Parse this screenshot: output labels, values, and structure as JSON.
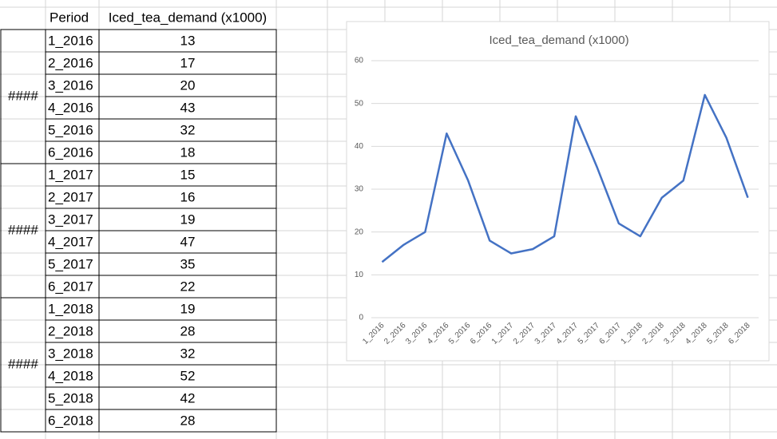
{
  "table": {
    "header": [
      "Period",
      "Iced_tea_demand (x1000)"
    ],
    "groups": [
      {
        "label": "####",
        "rows": [
          [
            "1_2016",
            13
          ],
          [
            "2_2016",
            17
          ],
          [
            "3_2016",
            20
          ],
          [
            "4_2016",
            43
          ],
          [
            "5_2016",
            32
          ],
          [
            "6_2016",
            18
          ]
        ]
      },
      {
        "label": "####",
        "rows": [
          [
            "1_2017",
            15
          ],
          [
            "2_2017",
            16
          ],
          [
            "3_2017",
            19
          ],
          [
            "4_2017",
            47
          ],
          [
            "5_2017",
            35
          ],
          [
            "6_2017",
            22
          ]
        ]
      },
      {
        "label": "####",
        "rows": [
          [
            "1_2018",
            19
          ],
          [
            "2_2018",
            28
          ],
          [
            "3_2018",
            32
          ],
          [
            "4_2018",
            52
          ],
          [
            "5_2018",
            42
          ],
          [
            "6_2018",
            28
          ]
        ]
      }
    ]
  },
  "chart_data": {
    "type": "line",
    "title": "Iced_tea_demand (x1000)",
    "categories": [
      "1_2016",
      "2_2016",
      "3_2016",
      "4_2016",
      "5_2016",
      "6_2016",
      "1_2017",
      "2_2017",
      "3_2017",
      "4_2017",
      "5_2017",
      "6_2017",
      "1_2018",
      "2_2018",
      "3_2018",
      "4_2018",
      "5_2018",
      "6_2018"
    ],
    "values": [
      13,
      17,
      20,
      43,
      32,
      18,
      15,
      16,
      19,
      47,
      35,
      22,
      19,
      28,
      32,
      52,
      42,
      28
    ],
    "color": "#4472c4",
    "ylim": [
      0,
      60
    ],
    "yticks": [
      0,
      10,
      20,
      30,
      40,
      50,
      60
    ],
    "grid": true
  }
}
